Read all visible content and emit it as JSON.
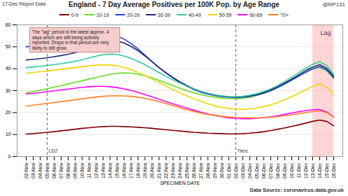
{
  "chart_data": {
    "type": "line",
    "report_label": "17-Dec Report Data",
    "title": "England - 7 Day Average Positives per 100K Pop. by Age Range",
    "credit": "@RP131",
    "source": "Data Source: coronavirus.data.gov.uk",
    "x_label": "SPECIMEN DATE",
    "x": [
      "02-Nov",
      "03-Nov",
      "04-Nov",
      "05-Nov",
      "06-Nov",
      "07-Nov",
      "08-Nov",
      "09-Nov",
      "10-Nov",
      "11-Nov",
      "12-Nov",
      "13-Nov",
      "14-Nov",
      "15-Nov",
      "16-Nov",
      "17-Nov",
      "18-Nov",
      "19-Nov",
      "20-Nov",
      "21-Nov",
      "22-Nov",
      "23-Nov",
      "24-Nov",
      "25-Nov",
      "26-Nov",
      "27-Nov",
      "28-Nov",
      "29-Nov",
      "30-Nov",
      "01-Dec",
      "02-Dec",
      "03-Dec",
      "04-Dec",
      "05-Dec",
      "06-Dec",
      "07-Dec",
      "08-Dec",
      "09-Dec",
      "10-Dec",
      "11-Dec",
      "12-Dec",
      "13-Dec",
      "14-Dec",
      "15-Dec",
      "16-Dec"
    ],
    "ylim": [
      0,
      60
    ],
    "yticks": [
      0,
      10,
      20,
      30,
      40,
      50,
      60
    ],
    "grid": true,
    "legend": "top",
    "series": [
      {
        "name": "0-9",
        "color": "#7f0000",
        "values": [
          10.2,
          10.4,
          10.7,
          11.0,
          11.3,
          11.7,
          12.0,
          12.4,
          12.8,
          13.1,
          13.4,
          13.6,
          13.7,
          13.7,
          13.6,
          13.5,
          13.3,
          13.1,
          12.8,
          12.5,
          12.2,
          11.9,
          11.6,
          11.3,
          11.0,
          10.8,
          10.6,
          10.5,
          10.4,
          10.3,
          10.3,
          10.4,
          10.6,
          10.9,
          11.3,
          11.8,
          12.4,
          13.0,
          13.7,
          14.4,
          15.2,
          16.0,
          16.6,
          16.0,
          14.0
        ]
      },
      {
        "name": "10-19",
        "color": "#66dd22",
        "values": [
          29.0,
          29.6,
          30.2,
          30.9,
          31.6,
          32.3,
          33.0,
          33.8,
          34.5,
          35.3,
          36.0,
          36.8,
          37.4,
          37.9,
          38.1,
          38.0,
          37.5,
          36.8,
          35.8,
          34.7,
          33.5,
          32.3,
          31.1,
          30.0,
          29.0,
          28.2,
          27.5,
          27.0,
          26.6,
          26.4,
          26.3,
          26.5,
          27.0,
          27.8,
          28.8,
          30.0,
          31.5,
          33.2,
          35.0,
          36.8,
          38.5,
          39.8,
          40.6,
          39.0,
          35.5
        ]
      },
      {
        "name": "20-29",
        "color": "#2244ee",
        "values": [
          50.0,
          50.4,
          50.8,
          51.3,
          51.7,
          52.0,
          52.3,
          52.8,
          53.5,
          54.5,
          55.5,
          56.0,
          55.8,
          55.0,
          53.5,
          51.5,
          49.0,
          46.2,
          43.3,
          40.5,
          38.0,
          35.8,
          33.8,
          32.0,
          30.5,
          29.3,
          28.4,
          27.8,
          27.3,
          27.0,
          26.9,
          27.0,
          27.4,
          28.0,
          28.9,
          30.0,
          31.4,
          33.0,
          34.8,
          36.6,
          38.4,
          40.0,
          41.0,
          39.5,
          36.0
        ]
      },
      {
        "name": "30-39",
        "color": "#1f2a6b",
        "values": [
          44.0,
          44.3,
          44.6,
          45.0,
          45.5,
          46.0,
          46.6,
          47.3,
          48.3,
          49.7,
          51.2,
          52.5,
          53.0,
          52.7,
          51.7,
          50.2,
          48.2,
          45.8,
          43.2,
          40.6,
          38.2,
          36.0,
          34.0,
          32.3,
          30.8,
          29.6,
          28.7,
          28.0,
          27.5,
          27.2,
          27.1,
          27.2,
          27.6,
          28.2,
          29.1,
          30.3,
          31.8,
          33.5,
          35.3,
          37.2,
          39.2,
          40.8,
          41.8,
          40.2,
          36.5
        ]
      },
      {
        "name": "40-49",
        "color": "#33c9a0",
        "values": [
          40.5,
          40.8,
          41.1,
          41.5,
          41.9,
          42.3,
          42.8,
          43.4,
          44.1,
          44.9,
          45.7,
          46.4,
          46.7,
          46.5,
          45.8,
          44.8,
          43.4,
          41.8,
          40.0,
          38.2,
          36.5,
          34.9,
          33.4,
          32.0,
          30.8,
          29.7,
          28.8,
          28.1,
          27.6,
          27.3,
          27.2,
          27.4,
          27.9,
          28.6,
          29.6,
          30.8,
          32.4,
          34.2,
          36.2,
          38.2,
          40.2,
          42.0,
          43.2,
          41.5,
          37.5
        ]
      },
      {
        "name": "50-59",
        "color": "#f2d600",
        "values": [
          38.0,
          38.3,
          38.6,
          38.9,
          39.3,
          39.7,
          40.1,
          40.5,
          40.9,
          41.3,
          41.6,
          41.8,
          41.7,
          41.3,
          40.6,
          39.6,
          38.3,
          36.9,
          35.3,
          33.7,
          32.1,
          30.5,
          29.0,
          27.6,
          26.3,
          25.1,
          24.0,
          23.1,
          22.4,
          21.9,
          21.6,
          21.5,
          21.7,
          22.1,
          22.7,
          23.5,
          24.6,
          25.9,
          27.3,
          28.8,
          30.4,
          32.0,
          33.2,
          31.5,
          28.0
        ]
      },
      {
        "name": "60-69",
        "color": "#ff00ff",
        "values": [
          28.5,
          28.8,
          29.1,
          29.5,
          29.9,
          30.3,
          30.7,
          31.1,
          31.5,
          31.8,
          32.0,
          32.0,
          31.8,
          31.4,
          30.8,
          30.1,
          29.2,
          28.2,
          27.2,
          26.1,
          25.0,
          24.0,
          23.0,
          22.0,
          21.1,
          20.2,
          19.4,
          18.7,
          18.1,
          17.6,
          17.3,
          17.2,
          17.2,
          17.4,
          17.7,
          18.1,
          18.6,
          19.2,
          19.8,
          20.4,
          20.9,
          21.3,
          21.4,
          20.3,
          18.0
        ]
      },
      {
        "name": "70+",
        "color": "#ff7f27",
        "values": [
          23.0,
          23.4,
          23.8,
          24.2,
          24.6,
          25.0,
          25.4,
          25.8,
          26.3,
          26.7,
          27.1,
          27.4,
          27.6,
          27.7,
          27.6,
          27.4,
          27.0,
          26.5,
          25.8,
          25.0,
          24.1,
          23.2,
          22.2,
          21.3,
          20.5,
          19.8,
          19.2,
          18.7,
          18.3,
          18.0,
          17.8,
          17.7,
          17.6,
          17.6,
          17.7,
          17.9,
          18.2,
          18.6,
          19.0,
          19.5,
          20.0,
          20.5,
          20.8,
          20.0,
          18.0
        ]
      }
    ],
    "reference_lines": [
      {
        "x": "05-Nov",
        "label": "LD2"
      },
      {
        "x": "02-Dec",
        "label": "Tiers"
      }
    ],
    "shaded_region": {
      "x_start": "13-Dec",
      "x_end": "16-Dec",
      "label": "Lag"
    },
    "annotation": "The \"lag\" period is the latest approx. 4 days which are still being actively reported. Drops in that period are very likely to still grow."
  }
}
